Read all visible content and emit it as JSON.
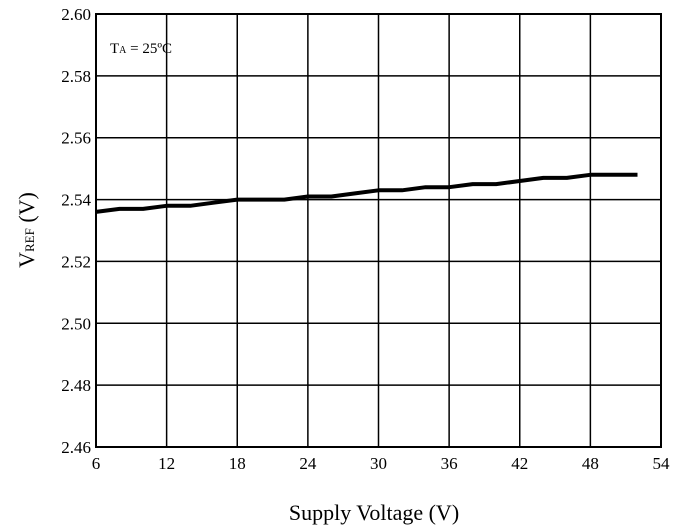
{
  "chart_data": {
    "type": "line",
    "xlabel": "Supply Voltage (V)",
    "ylabel_main": "V",
    "ylabel_sub": "REF",
    "ylabel_unit": " (V)",
    "annotation_main": "T",
    "annotation_sub": "A",
    "annotation_rest": " = 25ºC",
    "xlim": [
      6,
      54
    ],
    "ylim": [
      2.46,
      2.6
    ],
    "xticks": [
      6,
      12,
      18,
      24,
      30,
      36,
      42,
      48,
      54
    ],
    "yticks": [
      2.46,
      2.48,
      2.5,
      2.52,
      2.54,
      2.56,
      2.58,
      2.6
    ],
    "xtick_labels": [
      "6",
      "12",
      "18",
      "24",
      "30",
      "36",
      "42",
      "48",
      "54"
    ],
    "ytick_labels": [
      "2.46",
      "2.48",
      "2.50",
      "2.52",
      "2.54",
      "2.56",
      "2.58",
      "2.60"
    ],
    "grid": true,
    "colors": {
      "line": "#000000",
      "grid": "#000000",
      "background": "#ffffff"
    },
    "series": [
      {
        "x": [
          6,
          8,
          10,
          12,
          14,
          16,
          18,
          20,
          22,
          24,
          26,
          28,
          30,
          32,
          34,
          36,
          38,
          40,
          42,
          44,
          46,
          48,
          50,
          52
        ],
        "values": [
          2.536,
          2.537,
          2.537,
          2.538,
          2.538,
          2.539,
          2.54,
          2.54,
          2.54,
          2.541,
          2.541,
          2.542,
          2.543,
          2.543,
          2.544,
          2.544,
          2.545,
          2.545,
          2.546,
          2.547,
          2.547,
          2.548,
          2.548,
          2.548
        ]
      }
    ]
  }
}
